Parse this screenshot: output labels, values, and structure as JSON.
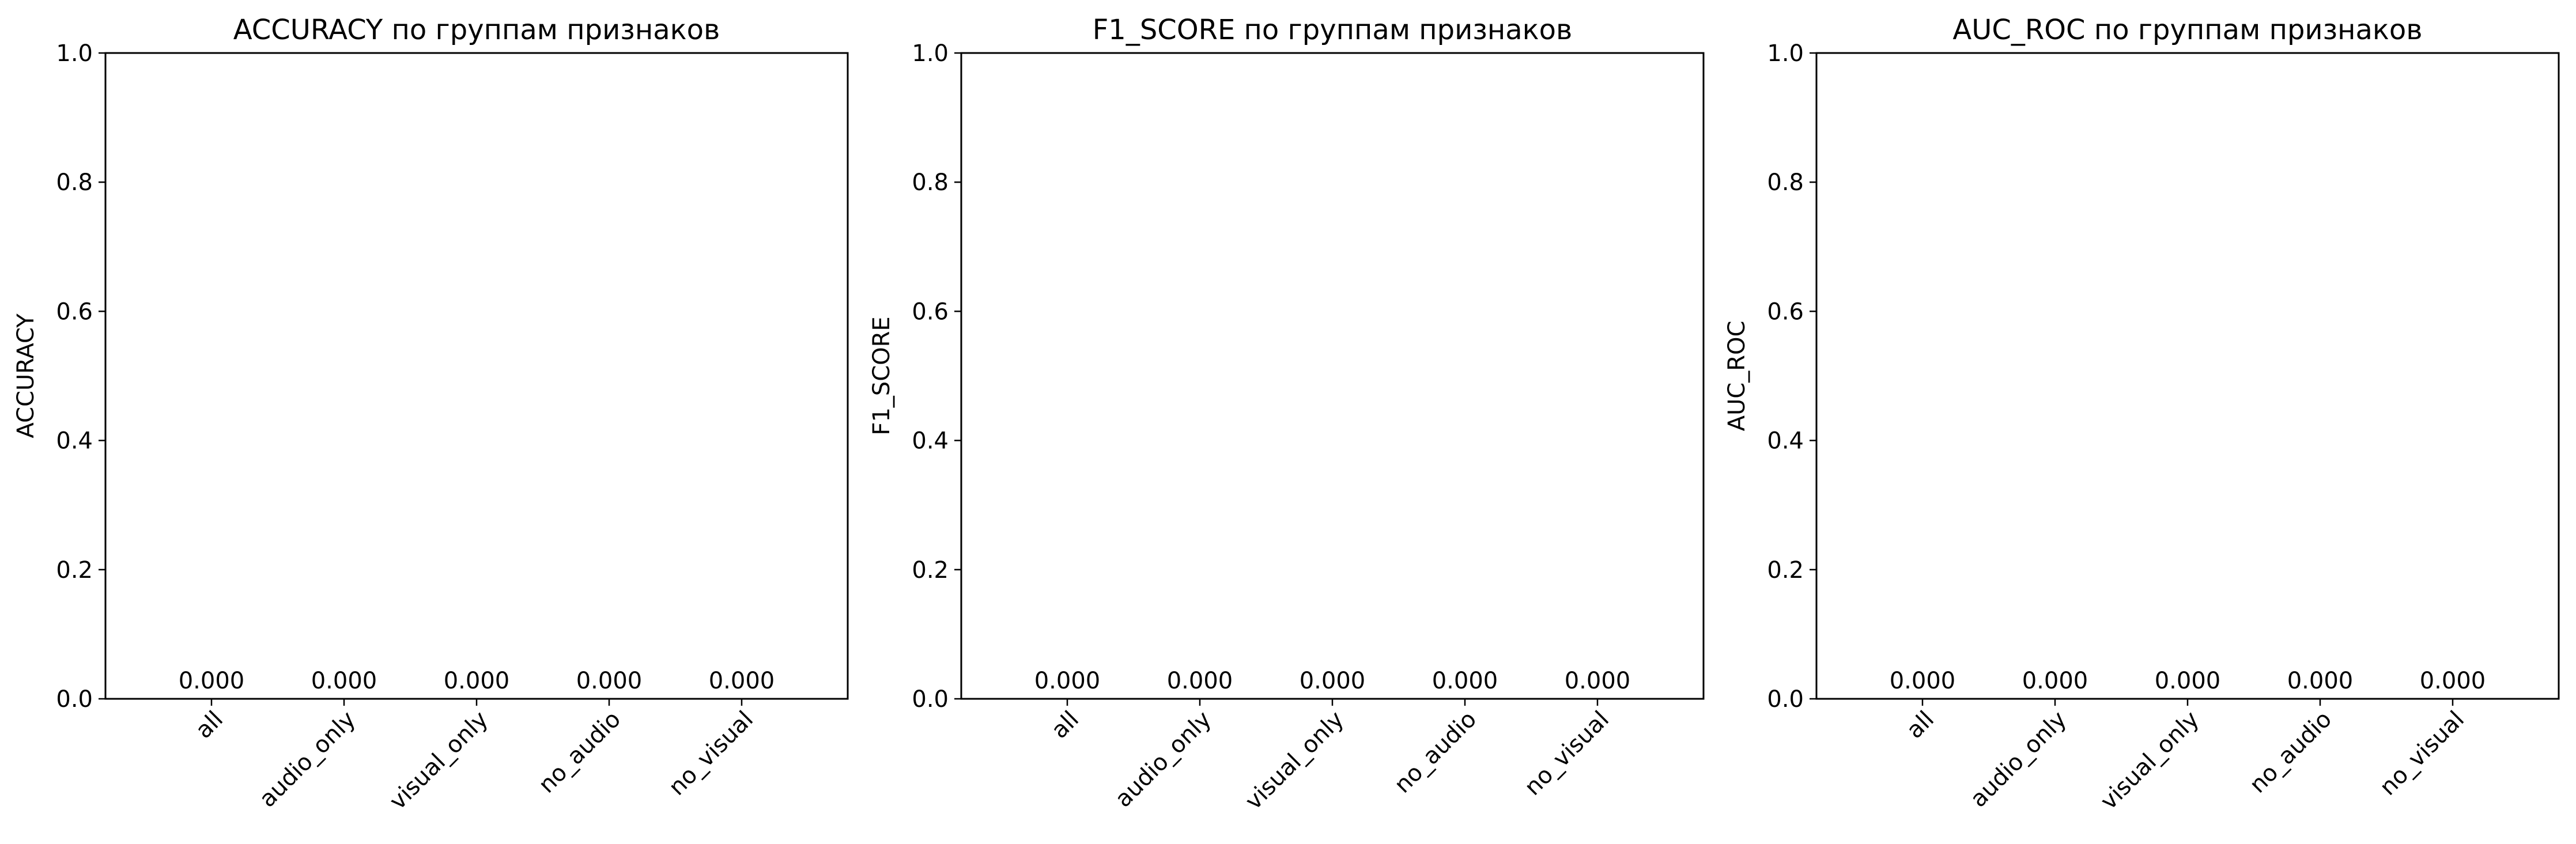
{
  "figure": {
    "background": "#ffffff",
    "axis_color": "#000000"
  },
  "chart_data": [
    {
      "type": "bar",
      "title": "ACCURACY по группам признаков",
      "xlabel": "",
      "ylabel": "ACCURACY",
      "categories": [
        "all",
        "audio_only",
        "visual_only",
        "no_audio",
        "no_visual"
      ],
      "values": [
        0.0,
        0.0,
        0.0,
        0.0,
        0.0
      ],
      "data_labels": [
        "0.000",
        "0.000",
        "0.000",
        "0.000",
        "0.000"
      ],
      "ylim": [
        0,
        1
      ],
      "yticks": [
        0.0,
        0.2,
        0.4,
        0.6,
        0.8,
        1.0
      ],
      "ytick_labels": [
        "0.0",
        "0.2",
        "0.4",
        "0.6",
        "0.8",
        "1.0"
      ],
      "grid": false,
      "legend": "none"
    },
    {
      "type": "bar",
      "title": "F1_SCORE по группам признаков",
      "xlabel": "",
      "ylabel": "F1_SCORE",
      "categories": [
        "all",
        "audio_only",
        "visual_only",
        "no_audio",
        "no_visual"
      ],
      "values": [
        0.0,
        0.0,
        0.0,
        0.0,
        0.0
      ],
      "data_labels": [
        "0.000",
        "0.000",
        "0.000",
        "0.000",
        "0.000"
      ],
      "ylim": [
        0,
        1
      ],
      "yticks": [
        0.0,
        0.2,
        0.4,
        0.6,
        0.8,
        1.0
      ],
      "ytick_labels": [
        "0.0",
        "0.2",
        "0.4",
        "0.6",
        "0.8",
        "1.0"
      ],
      "grid": false,
      "legend": "none"
    },
    {
      "type": "bar",
      "title": "AUC_ROC по группам признаков",
      "xlabel": "",
      "ylabel": "AUC_ROC",
      "categories": [
        "all",
        "audio_only",
        "visual_only",
        "no_audio",
        "no_visual"
      ],
      "values": [
        0.0,
        0.0,
        0.0,
        0.0,
        0.0
      ],
      "data_labels": [
        "0.000",
        "0.000",
        "0.000",
        "0.000",
        "0.000"
      ],
      "ylim": [
        0,
        1
      ],
      "yticks": [
        0.0,
        0.2,
        0.4,
        0.6,
        0.8,
        1.0
      ],
      "ytick_labels": [
        "0.0",
        "0.2",
        "0.4",
        "0.6",
        "0.8",
        "1.0"
      ],
      "grid": false,
      "legend": "none"
    }
  ]
}
